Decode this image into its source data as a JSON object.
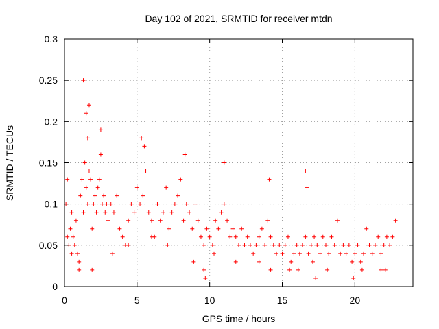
{
  "chart_data": {
    "type": "scatter",
    "title": "Day 102 of 2021, SRMTID for receiver mtdn",
    "xlabel": "GPS time / hours",
    "ylabel": "SRMTID / TECUs",
    "xlim": [
      0,
      24
    ],
    "ylim": [
      0,
      0.3
    ],
    "xticks": [
      0,
      5,
      10,
      15,
      20
    ],
    "xtick_labels": [
      "0",
      "5",
      "10",
      "15",
      "20"
    ],
    "yticks": [
      0,
      0.05,
      0.1,
      0.15,
      0.2,
      0.25,
      0.3
    ],
    "ytick_labels": [
      "0",
      "0.05",
      "0.1",
      "0.15",
      "0.2",
      "0.25",
      "0.3"
    ],
    "grid": true,
    "marker": "+",
    "color": "#ff0000",
    "series": [
      {
        "name": "SRMTID",
        "x": [
          0.1,
          0.2,
          0.3,
          0.4,
          0.5,
          0.6,
          0.7,
          0.8,
          0.9,
          1.0,
          1.1,
          1.2,
          1.3,
          1.4,
          1.5,
          1.6,
          1.7,
          1.8,
          1.9,
          2.0,
          2.1,
          2.2,
          2.3,
          2.4,
          2.5,
          2.6,
          2.7,
          2.8,
          2.9,
          3.0,
          3.2,
          3.4,
          3.6,
          3.8,
          4.0,
          4.2,
          4.4,
          4.6,
          4.8,
          5.0,
          5.2,
          5.4,
          5.6,
          5.8,
          6.0,
          6.2,
          6.4,
          6.6,
          6.8,
          7.0,
          7.2,
          7.4,
          7.6,
          7.8,
          8.0,
          8.2,
          8.4,
          8.6,
          8.8,
          9.0,
          9.2,
          9.4,
          9.6,
          9.8,
          10.0,
          10.2,
          10.4,
          10.6,
          10.8,
          11.0,
          11.2,
          11.4,
          11.6,
          11.8,
          12.0,
          12.2,
          12.4,
          12.6,
          12.8,
          13.0,
          13.2,
          13.4,
          13.6,
          13.8,
          14.0,
          14.2,
          14.4,
          14.6,
          14.8,
          15.0,
          15.2,
          15.4,
          15.6,
          15.8,
          16.0,
          16.2,
          16.4,
          16.6,
          16.8,
          17.0,
          17.2,
          17.4,
          17.6,
          17.8,
          18.0,
          18.2,
          18.4,
          18.6,
          18.8,
          19.0,
          19.2,
          19.4,
          19.6,
          19.8,
          20.0,
          20.2,
          20.4,
          20.6,
          20.8,
          21.0,
          21.2,
          21.4,
          21.6,
          21.8,
          22.0,
          22.2,
          22.4,
          22.6,
          22.8,
          1.3,
          1.5,
          1.6,
          1.7,
          2.5,
          5.3,
          5.5,
          8.3,
          11.0,
          14.1,
          16.6,
          16.7,
          0.2,
          0.5,
          1.0,
          1.9,
          3.3,
          4.4,
          6.0,
          7.1,
          8.9,
          9.6,
          9.7,
          10.3,
          11.8,
          13.4,
          14.2,
          15.5,
          16.1,
          17.1,
          17.3,
          18.1,
          19.9,
          20.5,
          21.8,
          22.1
        ],
        "y": [
          0.1,
          0.06,
          0.05,
          0.07,
          0.09,
          0.06,
          0.05,
          0.08,
          0.04,
          0.03,
          0.11,
          0.13,
          0.09,
          0.15,
          0.12,
          0.1,
          0.14,
          0.13,
          0.07,
          0.1,
          0.11,
          0.09,
          0.12,
          0.13,
          0.16,
          0.1,
          0.11,
          0.09,
          0.1,
          0.08,
          0.1,
          0.09,
          0.11,
          0.07,
          0.06,
          0.05,
          0.08,
          0.1,
          0.09,
          0.12,
          0.1,
          0.11,
          0.14,
          0.09,
          0.08,
          0.06,
          0.1,
          0.08,
          0.09,
          0.12,
          0.07,
          0.09,
          0.1,
          0.11,
          0.13,
          0.08,
          0.1,
          0.09,
          0.07,
          0.1,
          0.08,
          0.06,
          0.05,
          0.07,
          0.06,
          0.05,
          0.08,
          0.07,
          0.09,
          0.1,
          0.08,
          0.06,
          0.07,
          0.06,
          0.05,
          0.07,
          0.05,
          0.06,
          0.05,
          0.04,
          0.05,
          0.06,
          0.07,
          0.05,
          0.08,
          0.06,
          0.05,
          0.04,
          0.05,
          0.04,
          0.05,
          0.06,
          0.03,
          0.04,
          0.05,
          0.04,
          0.05,
          0.06,
          0.04,
          0.05,
          0.06,
          0.05,
          0.04,
          0.06,
          0.05,
          0.04,
          0.06,
          0.05,
          0.08,
          0.04,
          0.05,
          0.04,
          0.05,
          0.03,
          0.04,
          0.05,
          0.03,
          0.04,
          0.07,
          0.05,
          0.04,
          0.05,
          0.06,
          0.04,
          0.05,
          0.06,
          0.05,
          0.06,
          0.08,
          0.25,
          0.21,
          0.18,
          0.22,
          0.19,
          0.18,
          0.17,
          0.16,
          0.15,
          0.13,
          0.14,
          0.12,
          0.13,
          0.04,
          0.02,
          0.02,
          0.04,
          0.05,
          0.06,
          0.05,
          0.03,
          0.02,
          0.01,
          0.04,
          0.03,
          0.03,
          0.02,
          0.02,
          0.02,
          0.03,
          0.01,
          0.02,
          0.01,
          0.02,
          0.02,
          0.02
        ]
      }
    ]
  }
}
